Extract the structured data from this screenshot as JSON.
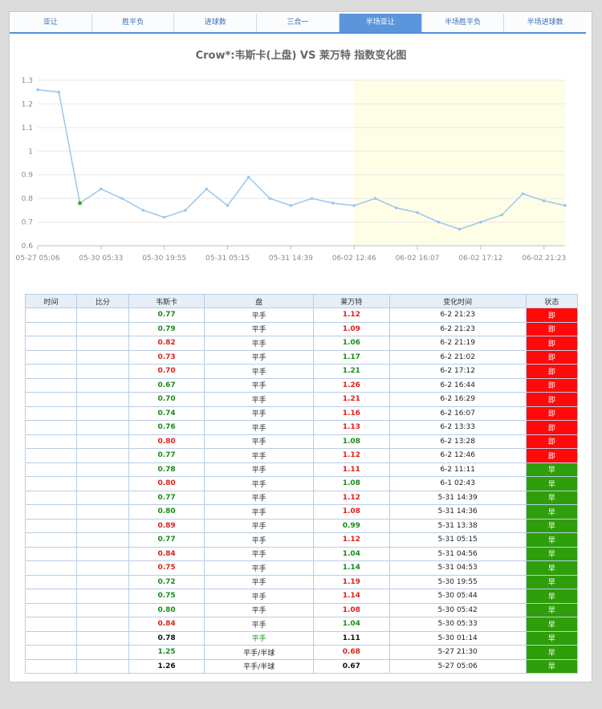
{
  "tabs": [
    {
      "label": "亚让",
      "active": false
    },
    {
      "label": "胜平负",
      "active": false
    },
    {
      "label": "进球数",
      "active": false
    },
    {
      "label": "三合一",
      "active": false
    },
    {
      "label": "半场亚让",
      "active": true
    },
    {
      "label": "半场胜平负",
      "active": false
    },
    {
      "label": "半场进球数",
      "active": false
    }
  ],
  "chart_data": {
    "type": "line",
    "title": "Crow*:韦斯卡(上盘) VS 莱万特 指数变化图",
    "ylim": [
      0.6,
      1.3
    ],
    "yticks": [
      0.6,
      0.7,
      0.8,
      0.9,
      1,
      1.1,
      1.2,
      1.3
    ],
    "xtick_labels": [
      "05-27 05:06",
      "05-30 05:33",
      "05-30 19:55",
      "05-31 05:15",
      "05-31 14:39",
      "06-02 12:46",
      "06-02 16:07",
      "06-02 17:12",
      "06-02 21:23"
    ],
    "xtick_index": [
      0,
      3,
      6,
      9,
      12,
      15,
      18,
      21,
      24
    ],
    "values": [
      1.26,
      1.25,
      0.78,
      0.84,
      0.8,
      0.75,
      0.72,
      0.75,
      0.84,
      0.77,
      0.89,
      0.8,
      0.77,
      0.8,
      0.78,
      0.77,
      0.8,
      0.76,
      0.74,
      0.7,
      0.67,
      0.7,
      0.73,
      0.82,
      0.79,
      0.77
    ],
    "highlight_start_index": 15,
    "marked_index": 2,
    "colors": {
      "line": "#9ac7ee",
      "highlight": "#fefee6",
      "marker": "#3aaa35",
      "grid": "#e8e8e8"
    },
    "grid": true
  },
  "table": {
    "headers": [
      "时间",
      "比分",
      "韦斯卡",
      "盘",
      "莱万特",
      "变化时间",
      "状态"
    ],
    "rows": [
      {
        "time": "",
        "score": "",
        "home": "0.77",
        "home_dir": "down",
        "line": "平手",
        "line_chg": false,
        "away": "1.12",
        "away_dir": "up",
        "changed": "6-2 21:23",
        "status": "即",
        "status_type": "live"
      },
      {
        "time": "",
        "score": "",
        "home": "0.79",
        "home_dir": "down",
        "line": "平手",
        "line_chg": false,
        "away": "1.09",
        "away_dir": "up",
        "changed": "6-2 21:23",
        "status": "即",
        "status_type": "live"
      },
      {
        "time": "",
        "score": "",
        "home": "0.82",
        "home_dir": "up",
        "line": "平手",
        "line_chg": false,
        "away": "1.06",
        "away_dir": "down",
        "changed": "6-2 21:19",
        "status": "即",
        "status_type": "live"
      },
      {
        "time": "",
        "score": "",
        "home": "0.73",
        "home_dir": "up",
        "line": "平手",
        "line_chg": false,
        "away": "1.17",
        "away_dir": "down",
        "changed": "6-2 21:02",
        "status": "即",
        "status_type": "live"
      },
      {
        "time": "",
        "score": "",
        "home": "0.70",
        "home_dir": "up",
        "line": "平手",
        "line_chg": false,
        "away": "1.21",
        "away_dir": "down",
        "changed": "6-2 17:12",
        "status": "即",
        "status_type": "live"
      },
      {
        "time": "",
        "score": "",
        "home": "0.67",
        "home_dir": "down",
        "line": "平手",
        "line_chg": false,
        "away": "1.26",
        "away_dir": "up",
        "changed": "6-2 16:44",
        "status": "即",
        "status_type": "live"
      },
      {
        "time": "",
        "score": "",
        "home": "0.70",
        "home_dir": "down",
        "line": "平手",
        "line_chg": false,
        "away": "1.21",
        "away_dir": "up",
        "changed": "6-2 16:29",
        "status": "即",
        "status_type": "live"
      },
      {
        "time": "",
        "score": "",
        "home": "0.74",
        "home_dir": "down",
        "line": "平手",
        "line_chg": false,
        "away": "1.16",
        "away_dir": "up",
        "changed": "6-2 16:07",
        "status": "即",
        "status_type": "live"
      },
      {
        "time": "",
        "score": "",
        "home": "0.76",
        "home_dir": "down",
        "line": "平手",
        "line_chg": false,
        "away": "1.13",
        "away_dir": "up",
        "changed": "6-2 13:33",
        "status": "即",
        "status_type": "live"
      },
      {
        "time": "",
        "score": "",
        "home": "0.80",
        "home_dir": "up",
        "line": "平手",
        "line_chg": false,
        "away": "1.08",
        "away_dir": "down",
        "changed": "6-2 13:28",
        "status": "即",
        "status_type": "live"
      },
      {
        "time": "",
        "score": "",
        "home": "0.77",
        "home_dir": "down",
        "line": "平手",
        "line_chg": false,
        "away": "1.12",
        "away_dir": "up",
        "changed": "6-2 12:46",
        "status": "即",
        "status_type": "live"
      },
      {
        "time": "",
        "score": "",
        "home": "0.78",
        "home_dir": "down",
        "line": "平手",
        "line_chg": false,
        "away": "1.11",
        "away_dir": "up",
        "changed": "6-2 11:11",
        "status": "早",
        "status_type": "early"
      },
      {
        "time": "",
        "score": "",
        "home": "0.80",
        "home_dir": "up",
        "line": "平手",
        "line_chg": false,
        "away": "1.08",
        "away_dir": "down",
        "changed": "6-1 02:43",
        "status": "早",
        "status_type": "early"
      },
      {
        "time": "",
        "score": "",
        "home": "0.77",
        "home_dir": "down",
        "line": "平手",
        "line_chg": false,
        "away": "1.12",
        "away_dir": "up",
        "changed": "5-31 14:39",
        "status": "早",
        "status_type": "early"
      },
      {
        "time": "",
        "score": "",
        "home": "0.80",
        "home_dir": "down",
        "line": "平手",
        "line_chg": false,
        "away": "1.08",
        "away_dir": "up",
        "changed": "5-31 14:36",
        "status": "早",
        "status_type": "early"
      },
      {
        "time": "",
        "score": "",
        "home": "0.89",
        "home_dir": "up",
        "line": "平手",
        "line_chg": false,
        "away": "0.99",
        "away_dir": "down",
        "changed": "5-31 13:38",
        "status": "早",
        "status_type": "early"
      },
      {
        "time": "",
        "score": "",
        "home": "0.77",
        "home_dir": "down",
        "line": "平手",
        "line_chg": false,
        "away": "1.12",
        "away_dir": "up",
        "changed": "5-31 05:15",
        "status": "早",
        "status_type": "early"
      },
      {
        "time": "",
        "score": "",
        "home": "0.84",
        "home_dir": "up",
        "line": "平手",
        "line_chg": false,
        "away": "1.04",
        "away_dir": "down",
        "changed": "5-31 04:56",
        "status": "早",
        "status_type": "early"
      },
      {
        "time": "",
        "score": "",
        "home": "0.75",
        "home_dir": "up",
        "line": "平手",
        "line_chg": false,
        "away": "1.14",
        "away_dir": "down",
        "changed": "5-31 04:53",
        "status": "早",
        "status_type": "early"
      },
      {
        "time": "",
        "score": "",
        "home": "0.72",
        "home_dir": "down",
        "line": "平手",
        "line_chg": false,
        "away": "1.19",
        "away_dir": "up",
        "changed": "5-30 19:55",
        "status": "早",
        "status_type": "early"
      },
      {
        "time": "",
        "score": "",
        "home": "0.75",
        "home_dir": "down",
        "line": "平手",
        "line_chg": false,
        "away": "1.14",
        "away_dir": "up",
        "changed": "5-30 05:44",
        "status": "早",
        "status_type": "early"
      },
      {
        "time": "",
        "score": "",
        "home": "0.80",
        "home_dir": "down",
        "line": "平手",
        "line_chg": false,
        "away": "1.08",
        "away_dir": "up",
        "changed": "5-30 05:42",
        "status": "早",
        "status_type": "early"
      },
      {
        "time": "",
        "score": "",
        "home": "0.84",
        "home_dir": "up",
        "line": "平手",
        "line_chg": false,
        "away": "1.04",
        "away_dir": "down",
        "changed": "5-30 05:33",
        "status": "早",
        "status_type": "early"
      },
      {
        "time": "",
        "score": "",
        "home": "0.78",
        "home_dir": "flat",
        "line": "平手",
        "line_chg": true,
        "away": "1.11",
        "away_dir": "flat",
        "changed": "5-30 01:14",
        "status": "早",
        "status_type": "early"
      },
      {
        "time": "",
        "score": "",
        "home": "1.25",
        "home_dir": "down",
        "line": "平手/半球",
        "line_chg": false,
        "away": "0.68",
        "away_dir": "up",
        "changed": "5-27 21:30",
        "status": "早",
        "status_type": "early"
      },
      {
        "time": "",
        "score": "",
        "home": "1.26",
        "home_dir": "flat",
        "line": "平手/半球",
        "line_chg": false,
        "away": "0.67",
        "away_dir": "flat",
        "changed": "5-27 05:06",
        "status": "早",
        "status_type": "early"
      }
    ]
  }
}
